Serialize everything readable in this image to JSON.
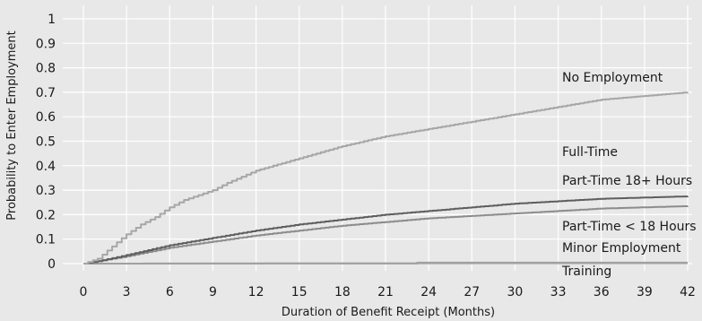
{
  "chart_data": {
    "type": "line",
    "title": "",
    "xlabel": "Duration of Benefit Receipt (Months)",
    "ylabel": "Probability to Enter Employment",
    "xlim": [
      0,
      42
    ],
    "ylim": [
      0,
      1
    ],
    "x_ticks": [
      "0",
      "3",
      "6",
      "9",
      "12",
      "15",
      "18",
      "21",
      "24",
      "27",
      "30",
      "33",
      "36",
      "39",
      "42"
    ],
    "y_ticks": [
      "0",
      "0.1",
      "0.2",
      "0.3",
      "0.4",
      "0.5",
      "0.6",
      "0.7",
      "0.8",
      "0.9",
      "1"
    ],
    "grid": true,
    "legend": "inline labels at right",
    "series": [
      {
        "name": "No Employment",
        "color": "#a6a6a6",
        "x": [
          0,
          1,
          2,
          3,
          4,
          5,
          6,
          7,
          8,
          9,
          10,
          12,
          15,
          18,
          21,
          24,
          27,
          30,
          33,
          36,
          39,
          42
        ],
        "y": [
          0,
          0.02,
          0.07,
          0.12,
          0.16,
          0.19,
          0.23,
          0.26,
          0.28,
          0.3,
          0.33,
          0.38,
          0.43,
          0.48,
          0.52,
          0.55,
          0.58,
          0.61,
          0.64,
          0.67,
          0.685,
          0.7
        ]
      },
      {
        "name": "Full-Time",
        "color": "#5e5e5e",
        "x": [
          0,
          1,
          3,
          6,
          9,
          12,
          15,
          18,
          21,
          24,
          27,
          30,
          33,
          36,
          39,
          42
        ],
        "y": [
          0,
          0.01,
          0.035,
          0.075,
          0.105,
          0.135,
          0.16,
          0.18,
          0.2,
          0.215,
          0.23,
          0.245,
          0.255,
          0.265,
          0.27,
          0.275
        ]
      },
      {
        "name": "Part-Time 18+ Hours",
        "color": "#8c8c8c",
        "x": [
          0,
          1,
          3,
          6,
          9,
          12,
          15,
          18,
          21,
          24,
          27,
          30,
          33,
          36,
          39,
          42
        ],
        "y": [
          0,
          0.01,
          0.03,
          0.065,
          0.09,
          0.115,
          0.135,
          0.155,
          0.17,
          0.185,
          0.195,
          0.205,
          0.215,
          0.225,
          0.23,
          0.235
        ]
      },
      {
        "name": "Part-Time < 18 Hours",
        "color": "#a0a0a0",
        "x": [
          0,
          23,
          23.2,
          42
        ],
        "y": [
          0,
          0.001,
          0.004,
          0.004
        ]
      },
      {
        "name": "Minor Employment",
        "color": "#b4b4b4",
        "x": [
          0,
          42
        ],
        "y": [
          0,
          0.002
        ]
      },
      {
        "name": "Training",
        "color": "#c2c2c2",
        "x": [
          0,
          42
        ],
        "y": [
          0,
          0.001
        ]
      }
    ]
  },
  "labels": {
    "no_employment": "No Employment",
    "full_time": "Full-Time",
    "part_time_18": "Part-Time 18+ Hours",
    "part_time_lt18": "Part-Time < 18 Hours",
    "minor_employment": "Minor Employment",
    "training": "Training"
  }
}
